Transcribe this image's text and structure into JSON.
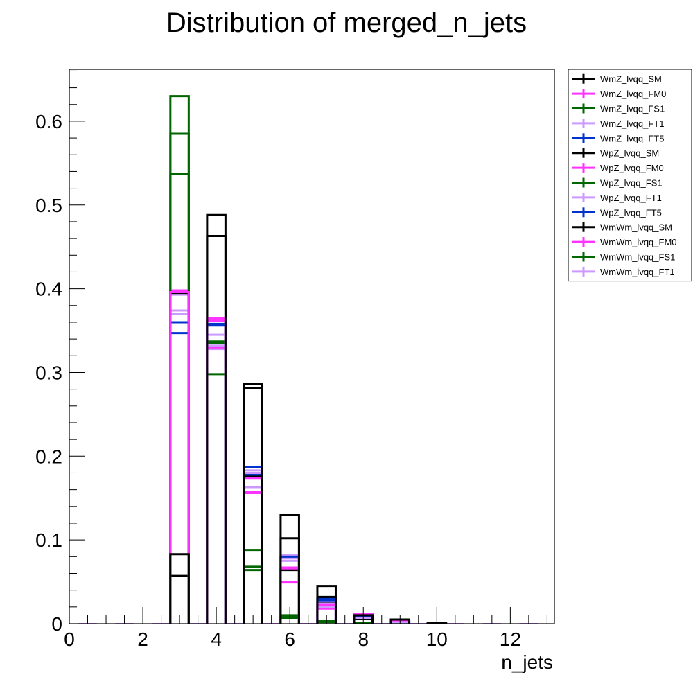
{
  "chart_data": {
    "type": "bar",
    "title": "Distribution of merged_n_jets",
    "xlabel": "n_jets",
    "ylabel": "",
    "xlim": [
      0,
      13.2
    ],
    "ylim": [
      0,
      0.662
    ],
    "x_ticks": [
      0,
      2,
      4,
      6,
      8,
      10,
      12
    ],
    "y_ticks": [
      0,
      0.1,
      0.2,
      0.3,
      0.4,
      0.5,
      0.6
    ],
    "bin_width": 0.5,
    "x": [
      0.5,
      1.5,
      2.5,
      3.5,
      4.5,
      5.5,
      6.5,
      7.5,
      8.5,
      9.5,
      10.5,
      11.5,
      12.5
    ],
    "legend_position": "top-right",
    "series": [
      {
        "name": "WmZ_lvqq_SM",
        "color": "#000000",
        "x": [
          3,
          4,
          5,
          6,
          7,
          8,
          9,
          10
        ],
        "values": [
          0.083,
          0.488,
          0.286,
          0.13,
          0.045,
          0.01,
          0.005,
          0.001
        ]
      },
      {
        "name": "WmZ_lvqq_FM0",
        "color": "#ff33ff",
        "x": [
          3,
          4,
          5,
          6,
          7,
          8,
          9,
          10
        ],
        "values": [
          0.396,
          0.365,
          0.174,
          0.066,
          0.023,
          0.012,
          0.004,
          0.001
        ]
      },
      {
        "name": "WmZ_lvqq_FS1",
        "color": "#006600",
        "x": [
          3,
          4,
          5,
          6,
          7,
          8,
          9,
          10
        ],
        "values": [
          0.63,
          0.298,
          0.068,
          0.01,
          0.002,
          0.001,
          0.0,
          0.0
        ]
      },
      {
        "name": "WmZ_lvqq_FT1",
        "color": "#cc99ff",
        "x": [
          3,
          4,
          5,
          6,
          7,
          8,
          9,
          10
        ],
        "values": [
          0.37,
          0.345,
          0.18,
          0.075,
          0.02,
          0.007,
          0.002,
          0.001
        ]
      },
      {
        "name": "WmZ_lvqq_FT5",
        "color": "#0033cc",
        "x": [
          3,
          4,
          5,
          6,
          7,
          8,
          9,
          10
        ],
        "values": [
          0.36,
          0.358,
          0.178,
          0.08,
          0.028,
          0.008,
          0.002,
          0.001
        ]
      },
      {
        "name": "WpZ_lvqq_SM",
        "color": "#000000",
        "x": [
          3,
          4,
          5,
          6,
          7,
          8,
          9,
          10
        ],
        "values": [
          0.057,
          0.463,
          0.281,
          0.102,
          0.032,
          0.008,
          0.003,
          0.001
        ]
      },
      {
        "name": "WpZ_lvqq_FM0",
        "color": "#ff33ff",
        "x": [
          3,
          4,
          5,
          6,
          7,
          8,
          9,
          10
        ],
        "values": [
          0.398,
          0.362,
          0.157,
          0.05,
          0.018,
          0.011,
          0.003,
          0.001
        ]
      },
      {
        "name": "WpZ_lvqq_FS1",
        "color": "#006600",
        "x": [
          3,
          4,
          5,
          6,
          7,
          8,
          9,
          10
        ],
        "values": [
          0.585,
          0.335,
          0.088,
          0.008,
          0.003,
          0.001,
          0.0,
          0.0
        ]
      },
      {
        "name": "WpZ_lvqq_FT1",
        "color": "#cc99ff",
        "x": [
          3,
          4,
          5,
          6,
          7,
          8,
          9,
          10
        ],
        "values": [
          0.374,
          0.332,
          0.183,
          0.078,
          0.024,
          0.008,
          0.002,
          0.001
        ]
      },
      {
        "name": "WpZ_lvqq_FT5",
        "color": "#0033cc",
        "x": [
          3,
          4,
          5,
          6,
          7,
          8,
          9,
          10
        ],
        "values": [
          0.347,
          0.356,
          0.187,
          0.079,
          0.03,
          0.008,
          0.002,
          0.001
        ]
      },
      {
        "name": "WmWm_lvqq_SM",
        "color": "#000000",
        "x": [
          3,
          4,
          5,
          6,
          7,
          8,
          9,
          10
        ],
        "values": [
          0.395,
          0.362,
          0.176,
          0.064,
          0.025,
          0.006,
          0.002,
          0.001
        ]
      },
      {
        "name": "WmWm_lvqq_FM0",
        "color": "#ff33ff",
        "x": [
          3,
          4,
          5,
          6,
          7,
          8,
          9,
          10
        ],
        "values": [
          0.397,
          0.33,
          0.156,
          0.067,
          0.021,
          0.011,
          0.003,
          0.001
        ]
      },
      {
        "name": "WmWm_lvqq_FS1",
        "color": "#006600",
        "x": [
          3,
          4,
          5,
          6,
          7,
          8,
          9,
          10
        ],
        "values": [
          0.537,
          0.337,
          0.064,
          0.007,
          0.002,
          0.001,
          0.0,
          0.0
        ]
      },
      {
        "name": "WmWm_lvqq_FT1",
        "color": "#cc99ff",
        "x": [
          3,
          4,
          5,
          6,
          7,
          8,
          9,
          10
        ],
        "values": [
          0.393,
          0.328,
          0.163,
          0.082,
          0.026,
          0.01,
          0.003,
          0.001
        ]
      }
    ]
  }
}
